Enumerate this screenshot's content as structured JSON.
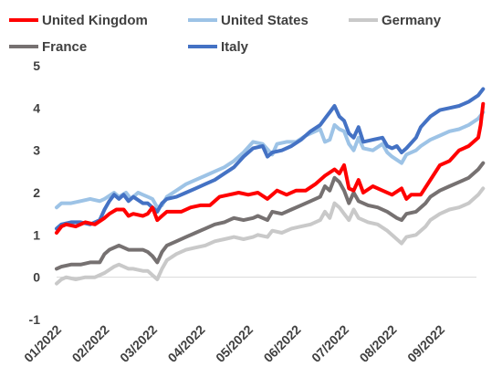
{
  "chart_data": {
    "type": "line",
    "title": "",
    "xlabel": "",
    "ylabel": "",
    "ylim": [
      -1,
      5
    ],
    "yticks": [
      "-1",
      "0",
      "1",
      "2",
      "3",
      "4",
      "5"
    ],
    "x_tick_labels": [
      "01/2022",
      "02/2022",
      "03/2022",
      "04/2022",
      "05/2022",
      "06/2022",
      "07/2022",
      "08/2022",
      "09/2022"
    ],
    "x_range_months": [
      0,
      8.9
    ],
    "grid": false,
    "legend_position": "top",
    "series": [
      {
        "name": "United Kingdom",
        "color": "#ff0000",
        "points": [
          [
            0,
            1.05
          ],
          [
            0.1,
            1.2
          ],
          [
            0.2,
            1.25
          ],
          [
            0.4,
            1.2
          ],
          [
            0.6,
            1.3
          ],
          [
            0.8,
            1.25
          ],
          [
            1.0,
            1.4
          ],
          [
            1.1,
            1.5
          ],
          [
            1.25,
            1.6
          ],
          [
            1.4,
            1.6
          ],
          [
            1.5,
            1.45
          ],
          [
            1.6,
            1.5
          ],
          [
            1.8,
            1.45
          ],
          [
            1.9,
            1.5
          ],
          [
            2.0,
            1.65
          ],
          [
            2.1,
            1.35
          ],
          [
            2.2,
            1.45
          ],
          [
            2.3,
            1.55
          ],
          [
            2.45,
            1.55
          ],
          [
            2.6,
            1.55
          ],
          [
            2.8,
            1.65
          ],
          [
            3.0,
            1.7
          ],
          [
            3.2,
            1.7
          ],
          [
            3.4,
            1.9
          ],
          [
            3.6,
            1.95
          ],
          [
            3.8,
            2.0
          ],
          [
            4.0,
            1.95
          ],
          [
            4.2,
            2.0
          ],
          [
            4.4,
            1.85
          ],
          [
            4.6,
            2.05
          ],
          [
            4.8,
            1.95
          ],
          [
            5.0,
            2.05
          ],
          [
            5.2,
            2.05
          ],
          [
            5.4,
            2.2
          ],
          [
            5.6,
            2.4
          ],
          [
            5.8,
            2.55
          ],
          [
            5.9,
            2.45
          ],
          [
            6.0,
            2.65
          ],
          [
            6.1,
            2.1
          ],
          [
            6.2,
            2.05
          ],
          [
            6.3,
            2.3
          ],
          [
            6.4,
            2.0
          ],
          [
            6.6,
            2.15
          ],
          [
            6.8,
            2.05
          ],
          [
            7.0,
            1.95
          ],
          [
            7.2,
            2.1
          ],
          [
            7.3,
            1.85
          ],
          [
            7.4,
            1.95
          ],
          [
            7.6,
            1.95
          ],
          [
            7.8,
            2.3
          ],
          [
            8.0,
            2.65
          ],
          [
            8.2,
            2.75
          ],
          [
            8.4,
            3.0
          ],
          [
            8.6,
            3.1
          ],
          [
            8.8,
            3.3
          ],
          [
            8.85,
            3.6
          ],
          [
            8.9,
            4.1
          ]
        ]
      },
      {
        "name": "United States",
        "color": "#9dc3e6",
        "points": [
          [
            0,
            1.65
          ],
          [
            0.1,
            1.75
          ],
          [
            0.3,
            1.75
          ],
          [
            0.5,
            1.8
          ],
          [
            0.7,
            1.85
          ],
          [
            0.9,
            1.8
          ],
          [
            1.0,
            1.85
          ],
          [
            1.2,
            2.0
          ],
          [
            1.3,
            1.9
          ],
          [
            1.45,
            2.0
          ],
          [
            1.55,
            1.85
          ],
          [
            1.7,
            2.0
          ],
          [
            1.8,
            1.95
          ],
          [
            1.9,
            1.9
          ],
          [
            2.0,
            1.85
          ],
          [
            2.1,
            1.65
          ],
          [
            2.2,
            1.7
          ],
          [
            2.3,
            1.9
          ],
          [
            2.5,
            2.05
          ],
          [
            2.7,
            2.2
          ],
          [
            2.9,
            2.3
          ],
          [
            3.1,
            2.4
          ],
          [
            3.3,
            2.5
          ],
          [
            3.5,
            2.6
          ],
          [
            3.7,
            2.75
          ],
          [
            3.9,
            2.95
          ],
          [
            4.1,
            3.2
          ],
          [
            4.3,
            3.15
          ],
          [
            4.5,
            2.9
          ],
          [
            4.6,
            3.15
          ],
          [
            4.8,
            3.2
          ],
          [
            5.0,
            3.2
          ],
          [
            5.2,
            3.35
          ],
          [
            5.4,
            3.45
          ],
          [
            5.5,
            3.5
          ],
          [
            5.6,
            3.2
          ],
          [
            5.7,
            3.25
          ],
          [
            5.8,
            3.6
          ],
          [
            5.9,
            3.5
          ],
          [
            6.0,
            3.45
          ],
          [
            6.1,
            3.15
          ],
          [
            6.2,
            3.0
          ],
          [
            6.3,
            3.3
          ],
          [
            6.4,
            3.05
          ],
          [
            6.6,
            3.0
          ],
          [
            6.8,
            3.15
          ],
          [
            6.9,
            2.95
          ],
          [
            7.0,
            2.85
          ],
          [
            7.2,
            2.7
          ],
          [
            7.3,
            2.9
          ],
          [
            7.5,
            3.0
          ],
          [
            7.6,
            3.1
          ],
          [
            7.8,
            3.25
          ],
          [
            8.0,
            3.35
          ],
          [
            8.2,
            3.45
          ],
          [
            8.4,
            3.5
          ],
          [
            8.6,
            3.6
          ],
          [
            8.8,
            3.75
          ],
          [
            8.9,
            3.9
          ]
        ]
      },
      {
        "name": "Germany",
        "color": "#c9c9c9",
        "points": [
          [
            0,
            -0.15
          ],
          [
            0.1,
            -0.05
          ],
          [
            0.2,
            0.0
          ],
          [
            0.4,
            -0.05
          ],
          [
            0.6,
            0.0
          ],
          [
            0.8,
            0.0
          ],
          [
            1.0,
            0.1
          ],
          [
            1.2,
            0.25
          ],
          [
            1.3,
            0.3
          ],
          [
            1.4,
            0.25
          ],
          [
            1.5,
            0.2
          ],
          [
            1.6,
            0.2
          ],
          [
            1.8,
            0.15
          ],
          [
            1.9,
            0.15
          ],
          [
            2.0,
            0.05
          ],
          [
            2.1,
            -0.05
          ],
          [
            2.2,
            0.2
          ],
          [
            2.3,
            0.4
          ],
          [
            2.5,
            0.55
          ],
          [
            2.7,
            0.65
          ],
          [
            2.9,
            0.7
          ],
          [
            3.1,
            0.75
          ],
          [
            3.3,
            0.85
          ],
          [
            3.5,
            0.9
          ],
          [
            3.7,
            0.95
          ],
          [
            3.9,
            0.9
          ],
          [
            4.1,
            0.95
          ],
          [
            4.2,
            1.0
          ],
          [
            4.4,
            0.95
          ],
          [
            4.5,
            1.1
          ],
          [
            4.7,
            1.05
          ],
          [
            4.9,
            1.15
          ],
          [
            5.1,
            1.2
          ],
          [
            5.3,
            1.25
          ],
          [
            5.5,
            1.35
          ],
          [
            5.6,
            1.55
          ],
          [
            5.7,
            1.4
          ],
          [
            5.8,
            1.75
          ],
          [
            5.9,
            1.65
          ],
          [
            6.0,
            1.5
          ],
          [
            6.1,
            1.35
          ],
          [
            6.2,
            1.6
          ],
          [
            6.3,
            1.4
          ],
          [
            6.5,
            1.3
          ],
          [
            6.7,
            1.25
          ],
          [
            6.9,
            1.1
          ],
          [
            7.1,
            0.9
          ],
          [
            7.2,
            0.8
          ],
          [
            7.3,
            0.95
          ],
          [
            7.5,
            1.0
          ],
          [
            7.7,
            1.2
          ],
          [
            7.8,
            1.35
          ],
          [
            8.0,
            1.5
          ],
          [
            8.2,
            1.6
          ],
          [
            8.4,
            1.65
          ],
          [
            8.6,
            1.75
          ],
          [
            8.8,
            1.95
          ],
          [
            8.9,
            2.1
          ]
        ]
      },
      {
        "name": "France",
        "color": "#767171",
        "points": [
          [
            0,
            0.2
          ],
          [
            0.1,
            0.25
          ],
          [
            0.3,
            0.3
          ],
          [
            0.5,
            0.3
          ],
          [
            0.7,
            0.35
          ],
          [
            0.9,
            0.35
          ],
          [
            1.0,
            0.55
          ],
          [
            1.1,
            0.65
          ],
          [
            1.3,
            0.75
          ],
          [
            1.4,
            0.7
          ],
          [
            1.5,
            0.65
          ],
          [
            1.6,
            0.65
          ],
          [
            1.8,
            0.65
          ],
          [
            1.9,
            0.6
          ],
          [
            2.0,
            0.5
          ],
          [
            2.1,
            0.35
          ],
          [
            2.2,
            0.6
          ],
          [
            2.3,
            0.75
          ],
          [
            2.5,
            0.85
          ],
          [
            2.7,
            0.95
          ],
          [
            2.9,
            1.05
          ],
          [
            3.1,
            1.15
          ],
          [
            3.3,
            1.25
          ],
          [
            3.5,
            1.3
          ],
          [
            3.7,
            1.4
          ],
          [
            3.9,
            1.35
          ],
          [
            4.1,
            1.4
          ],
          [
            4.2,
            1.45
          ],
          [
            4.4,
            1.35
          ],
          [
            4.5,
            1.55
          ],
          [
            4.7,
            1.5
          ],
          [
            4.9,
            1.6
          ],
          [
            5.1,
            1.7
          ],
          [
            5.3,
            1.8
          ],
          [
            5.5,
            1.9
          ],
          [
            5.6,
            2.15
          ],
          [
            5.7,
            2.05
          ],
          [
            5.8,
            2.35
          ],
          [
            5.9,
            2.25
          ],
          [
            6.0,
            2.05
          ],
          [
            6.1,
            1.75
          ],
          [
            6.2,
            2.0
          ],
          [
            6.3,
            1.8
          ],
          [
            6.5,
            1.7
          ],
          [
            6.7,
            1.65
          ],
          [
            6.9,
            1.55
          ],
          [
            7.1,
            1.4
          ],
          [
            7.2,
            1.35
          ],
          [
            7.3,
            1.5
          ],
          [
            7.5,
            1.55
          ],
          [
            7.7,
            1.75
          ],
          [
            7.8,
            1.9
          ],
          [
            8.0,
            2.05
          ],
          [
            8.2,
            2.15
          ],
          [
            8.4,
            2.25
          ],
          [
            8.6,
            2.35
          ],
          [
            8.8,
            2.55
          ],
          [
            8.9,
            2.7
          ]
        ]
      },
      {
        "name": "Italy",
        "color": "#4472c4",
        "points": [
          [
            0,
            1.15
          ],
          [
            0.1,
            1.25
          ],
          [
            0.3,
            1.3
          ],
          [
            0.5,
            1.3
          ],
          [
            0.7,
            1.25
          ],
          [
            0.9,
            1.35
          ],
          [
            1.0,
            1.6
          ],
          [
            1.1,
            1.8
          ],
          [
            1.2,
            1.95
          ],
          [
            1.3,
            1.85
          ],
          [
            1.4,
            1.95
          ],
          [
            1.5,
            1.8
          ],
          [
            1.6,
            1.9
          ],
          [
            1.8,
            1.75
          ],
          [
            1.9,
            1.75
          ],
          [
            2.0,
            1.65
          ],
          [
            2.1,
            1.55
          ],
          [
            2.2,
            1.75
          ],
          [
            2.3,
            1.85
          ],
          [
            2.5,
            1.9
          ],
          [
            2.7,
            2.0
          ],
          [
            2.9,
            2.1
          ],
          [
            3.1,
            2.2
          ],
          [
            3.3,
            2.3
          ],
          [
            3.5,
            2.45
          ],
          [
            3.7,
            2.6
          ],
          [
            3.9,
            2.85
          ],
          [
            4.1,
            3.05
          ],
          [
            4.3,
            3.1
          ],
          [
            4.4,
            2.85
          ],
          [
            4.5,
            2.95
          ],
          [
            4.7,
            3.0
          ],
          [
            4.9,
            3.1
          ],
          [
            5.1,
            3.25
          ],
          [
            5.3,
            3.45
          ],
          [
            5.5,
            3.6
          ],
          [
            5.6,
            3.75
          ],
          [
            5.7,
            3.9
          ],
          [
            5.8,
            4.05
          ],
          [
            5.9,
            3.8
          ],
          [
            6.0,
            3.7
          ],
          [
            6.1,
            3.4
          ],
          [
            6.2,
            3.3
          ],
          [
            6.3,
            3.55
          ],
          [
            6.4,
            3.2
          ],
          [
            6.6,
            3.25
          ],
          [
            6.8,
            3.3
          ],
          [
            6.9,
            3.1
          ],
          [
            7.0,
            3.05
          ],
          [
            7.1,
            3.1
          ],
          [
            7.2,
            2.95
          ],
          [
            7.3,
            3.05
          ],
          [
            7.5,
            3.3
          ],
          [
            7.6,
            3.55
          ],
          [
            7.8,
            3.8
          ],
          [
            8.0,
            3.95
          ],
          [
            8.2,
            4.0
          ],
          [
            8.4,
            4.05
          ],
          [
            8.6,
            4.15
          ],
          [
            8.8,
            4.3
          ],
          [
            8.9,
            4.45
          ]
        ]
      }
    ]
  }
}
